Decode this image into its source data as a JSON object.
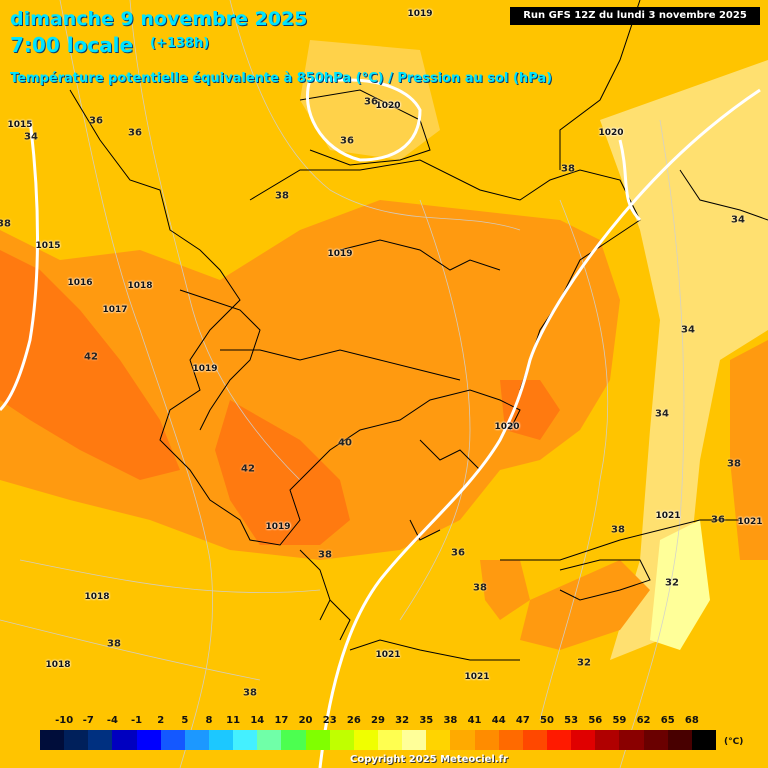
{
  "header": {
    "date": "dimanche 9 novembre 2025",
    "time": "7:00 locale",
    "lead": "(+138h)",
    "subtitle": "Température potentielle équivalente à 850hPa (°C) / Pression au sol (hPa)",
    "run": "Run GFS 12Z du lundi 3 novembre 2025"
  },
  "colors": {
    "background_field": "#ffc400",
    "warm_field": "#ff9a10",
    "hot_field": "#ff7a10",
    "cool_field": "#ffe070",
    "coldest_field": "#ffff99",
    "isobar": "#ffffff",
    "border": "#000000"
  },
  "scale": {
    "unit": "(°C)",
    "labels": [
      "-10",
      "-7",
      "-4",
      "-1",
      "2",
      "5",
      "8",
      "11",
      "14",
      "17",
      "20",
      "23",
      "26",
      "29",
      "32",
      "35",
      "38",
      "41",
      "44",
      "47",
      "50",
      "53",
      "56",
      "59",
      "62",
      "65",
      "68"
    ],
    "colors": [
      "#000d3a",
      "#00205b",
      "#003080",
      "#0000c0",
      "#0000ff",
      "#1458ff",
      "#1c98ff",
      "#1cc8ff",
      "#44f0ff",
      "#70ffa8",
      "#4cff50",
      "#80ff00",
      "#c0ff00",
      "#f0ff00",
      "#ffff50",
      "#ffff99",
      "#ffd400",
      "#ffaa00",
      "#ff8c00",
      "#ff6a00",
      "#ff4800",
      "#ff1a00",
      "#e00000",
      "#b00000",
      "#8a0000",
      "#6a0000",
      "#480000",
      "#000000"
    ]
  },
  "pressure_labels": [
    "1019",
    "1015",
    "1015",
    "1016",
    "1018",
    "1017",
    "1019",
    "1019",
    "1020",
    "1020",
    "1020",
    "1021",
    "1021",
    "1021",
    "1018",
    "1018",
    "1021",
    "1019"
  ],
  "temp_labels": [
    "36",
    "36",
    "36",
    "34",
    "36",
    "38",
    "38",
    "38",
    "42",
    "42",
    "40",
    "38",
    "36",
    "38",
    "38",
    "34",
    "34",
    "38",
    "36",
    "32",
    "32",
    "38",
    "38",
    "34"
  ],
  "copyright": "Copyright 2025 Meteociel.fr"
}
